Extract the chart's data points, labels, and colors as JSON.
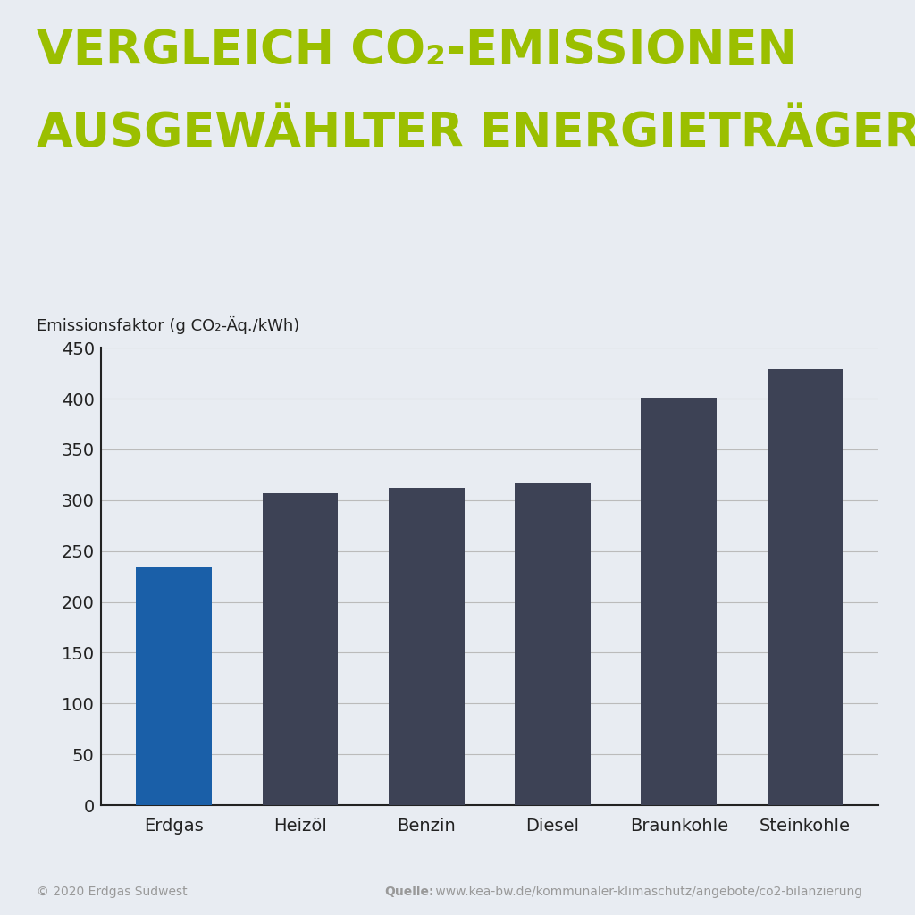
{
  "categories": [
    "Erdgas",
    "Heizöl",
    "Benzin",
    "Diesel",
    "Braunkohle",
    "Steinkohle"
  ],
  "values": [
    234,
    307,
    312,
    317,
    401,
    429
  ],
  "bar_colors": [
    "#1a5fa8",
    "#3d4255",
    "#3d4255",
    "#3d4255",
    "#3d4255",
    "#3d4255"
  ],
  "background_color": "#e8ecf2",
  "title_line1": "VERGLEICH CO₂-EMISSIONEN",
  "title_line2": "AUSGEWÄHLTER ENERGIETRÄGER",
  "title_color": "#9bbf00",
  "ylabel": "Emissionsfaktor (g CO₂-Äq./kWh)",
  "ylabel_fontsize": 13,
  "title_fontsize": 38,
  "ylim": [
    0,
    450
  ],
  "yticks": [
    0,
    50,
    100,
    150,
    200,
    250,
    300,
    350,
    400,
    450
  ],
  "axis_color": "#222222",
  "grid_color": "#bbbbbb",
  "tick_fontsize": 14,
  "xtick_fontsize": 14,
  "footer_left": "© 2020 Erdgas Südwest",
  "footer_right_bold": "Quelle:",
  "footer_right_normal": " www.kea-bw.de/kommunaler-klimaschutz/angebote/co2-bilanzierung",
  "footer_color": "#999999",
  "footer_fontsize": 10,
  "bar_width": 0.6
}
